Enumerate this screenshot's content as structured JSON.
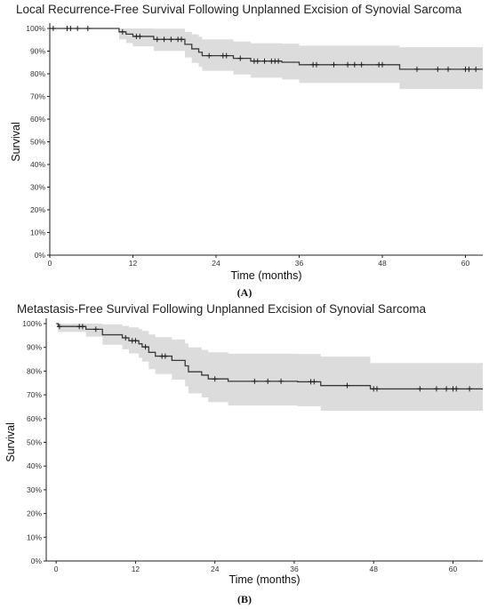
{
  "chart_data": [
    {
      "id": "A",
      "type": "line",
      "subtype": "kaplan-meier",
      "panel_label": "(A)",
      "title": "Local Recurrence-Free Survival Following Unplanned Excision of Synovial Sarcoma",
      "xlabel": "Time (months)",
      "ylabel": "Survival",
      "xlim": [
        0,
        62.5
      ],
      "ylim": [
        0,
        100
      ],
      "x_ticks": [
        0,
        12,
        24,
        36,
        48,
        60
      ],
      "y_ticks": [
        0,
        10,
        20,
        30,
        40,
        50,
        60,
        70,
        80,
        90,
        100
      ],
      "y_tick_labels": [
        "0%",
        "10%",
        "20%",
        "30%",
        "40%",
        "50%",
        "60%",
        "70%",
        "80%",
        "90%",
        "100%"
      ],
      "grid": false,
      "legend": "none",
      "colors": {
        "line": "#3a3a3a",
        "ci": "#dcdcdc"
      },
      "series": [
        {
          "steps": [
            [
              0,
              100
            ],
            [
              10,
              98.5
            ],
            [
              11,
              97.5
            ],
            [
              12,
              96.5
            ],
            [
              15,
              95.2
            ],
            [
              19.5,
              93
            ],
            [
              20.5,
              91
            ],
            [
              21.5,
              89.5
            ],
            [
              22,
              88
            ],
            [
              26.5,
              86.8
            ],
            [
              29,
              85.6
            ],
            [
              33.5,
              85.1
            ],
            [
              36,
              84
            ],
            [
              50.5,
              82
            ],
            [
              62.5,
              82
            ]
          ],
          "ci_lower": [
            [
              0,
              100
            ],
            [
              10,
              95.2
            ],
            [
              11,
              93.6
            ],
            [
              12,
              92.1
            ],
            [
              15,
              90.1
            ],
            [
              19.5,
              87.2
            ],
            [
              20.5,
              84.8
            ],
            [
              21.5,
              83.1
            ],
            [
              22,
              81.3
            ],
            [
              26.5,
              79.7
            ],
            [
              29,
              78.3
            ],
            [
              33.5,
              77.5
            ],
            [
              36,
              76
            ],
            [
              50.5,
              73.3
            ],
            [
              62.5,
              73.3
            ]
          ],
          "ci_upper": [
            [
              0,
              100
            ],
            [
              10,
              100
            ],
            [
              11,
              100
            ],
            [
              12,
              100
            ],
            [
              15,
              99.9
            ],
            [
              19.5,
              98.5
            ],
            [
              20.5,
              97.4
            ],
            [
              21.5,
              96.3
            ],
            [
              22,
              95.2
            ],
            [
              26.5,
              94.2
            ],
            [
              29,
              93.5
            ],
            [
              33.5,
              93.3
            ],
            [
              36,
              92.4
            ],
            [
              50.5,
              91.7
            ],
            [
              62.5,
              91.7
            ]
          ],
          "censored": [
            [
              0.5,
              100
            ],
            [
              2.5,
              100
            ],
            [
              3,
              100
            ],
            [
              4,
              100
            ],
            [
              5.5,
              100
            ],
            [
              10.5,
              98.5
            ],
            [
              12.5,
              96.5
            ],
            [
              13,
              96.5
            ],
            [
              15.5,
              95.2
            ],
            [
              16.5,
              95.2
            ],
            [
              17.5,
              95.2
            ],
            [
              18.5,
              95.2
            ],
            [
              19,
              95.2
            ],
            [
              23,
              88
            ],
            [
              25,
              88
            ],
            [
              25.5,
              88
            ],
            [
              27.5,
              86.8
            ],
            [
              29.5,
              85.6
            ],
            [
              30,
              85.6
            ],
            [
              31,
              85.6
            ],
            [
              32,
              85.6
            ],
            [
              32.5,
              85.6
            ],
            [
              33,
              85.6
            ],
            [
              38,
              84
            ],
            [
              38.5,
              84
            ],
            [
              41,
              84
            ],
            [
              43,
              84
            ],
            [
              44,
              84
            ],
            [
              45,
              84
            ],
            [
              47.5,
              84
            ],
            [
              48,
              84
            ],
            [
              53,
              82
            ],
            [
              56,
              82
            ],
            [
              57.5,
              82
            ],
            [
              60,
              82
            ],
            [
              60.5,
              82
            ],
            [
              61.5,
              82
            ]
          ]
        }
      ]
    },
    {
      "id": "B",
      "type": "line",
      "subtype": "kaplan-meier",
      "panel_label": "(B)",
      "title": "Metastasis-Free Survival Following Unplanned Excision of Synovial Sarcoma",
      "xlabel": "Time (months)",
      "ylabel": "Survival",
      "xlim": [
        -1.5,
        64.5
      ],
      "ylim": [
        0,
        100
      ],
      "x_ticks": [
        0,
        12,
        24,
        36,
        48,
        60
      ],
      "y_ticks": [
        0,
        10,
        20,
        30,
        40,
        50,
        60,
        70,
        80,
        90,
        100
      ],
      "y_tick_labels": [
        "0%",
        "10%",
        "20%",
        "30%",
        "40%",
        "50%",
        "60%",
        "70%",
        "80%",
        "90%",
        "100%"
      ],
      "grid": false,
      "legend": "none",
      "colors": {
        "line": "#3a3a3a",
        "ci": "#dcdcdc"
      },
      "series": [
        {
          "steps": [
            [
              0,
              100
            ],
            [
              0.3,
              98.8
            ],
            [
              4.5,
              97.6
            ],
            [
              7,
              95.3
            ],
            [
              10,
              94
            ],
            [
              11,
              92.8
            ],
            [
              12.5,
              91.5
            ],
            [
              13,
              90.2
            ],
            [
              14,
              87.9
            ],
            [
              15,
              86.3
            ],
            [
              17.5,
              84.5
            ],
            [
              19.5,
              82.2
            ],
            [
              20,
              79.7
            ],
            [
              22,
              78.3
            ],
            [
              23,
              76.7
            ],
            [
              26,
              75.7
            ],
            [
              33,
              75.7
            ],
            [
              36.5,
              75.5
            ],
            [
              40,
              73.9
            ],
            [
              47.5,
              72.5
            ],
            [
              64.5,
              72.5
            ]
          ],
          "ci_lower": [
            [
              0,
              100
            ],
            [
              0.3,
              96.5
            ],
            [
              4.5,
              94.5
            ],
            [
              7,
              91.1
            ],
            [
              10,
              89.2
            ],
            [
              11,
              87.4
            ],
            [
              12.5,
              85.6
            ],
            [
              13,
              84
            ],
            [
              14,
              80.8
            ],
            [
              15,
              78.8
            ],
            [
              17.5,
              76.4
            ],
            [
              19.5,
              73.6
            ],
            [
              20,
              70.6
            ],
            [
              22,
              68.9
            ],
            [
              23,
              66.9
            ],
            [
              26,
              65.5
            ],
            [
              33,
              65.5
            ],
            [
              36.5,
              65.2
            ],
            [
              40,
              63.3
            ],
            [
              47.5,
              63.3
            ],
            [
              64.5,
              63.3
            ]
          ],
          "ci_upper": [
            [
              0,
              100
            ],
            [
              0.3,
              100
            ],
            [
              4.5,
              100
            ],
            [
              7,
              99.7
            ],
            [
              10,
              99
            ],
            [
              11,
              98.4
            ],
            [
              12.5,
              97.7
            ],
            [
              13,
              96.9
            ],
            [
              14,
              95.4
            ],
            [
              15,
              94.3
            ],
            [
              17.5,
              93.3
            ],
            [
              19.5,
              91.6
            ],
            [
              20,
              90
            ],
            [
              22,
              88.9
            ],
            [
              23,
              87.9
            ],
            [
              26,
              87.3
            ],
            [
              33,
              87.3
            ],
            [
              36.5,
              87.2
            ],
            [
              40,
              86.1
            ],
            [
              47.5,
              83.4
            ],
            [
              64.5,
              83.4
            ]
          ],
          "censored": [
            [
              0.5,
              98.8
            ],
            [
              3.5,
              98.8
            ],
            [
              4,
              98.8
            ],
            [
              6,
              97.6
            ],
            [
              10.5,
              94
            ],
            [
              11.5,
              92.8
            ],
            [
              12,
              92.8
            ],
            [
              13.5,
              90.2
            ],
            [
              16,
              86.3
            ],
            [
              16.5,
              86.3
            ],
            [
              24,
              76.7
            ],
            [
              30,
              75.7
            ],
            [
              32,
              75.7
            ],
            [
              34,
              75.7
            ],
            [
              38.5,
              75.5
            ],
            [
              39,
              75.5
            ],
            [
              44,
              73.9
            ],
            [
              48,
              72.5
            ],
            [
              48.5,
              72.5
            ],
            [
              55,
              72.5
            ],
            [
              57.5,
              72.5
            ],
            [
              59,
              72.5
            ],
            [
              60,
              72.5
            ],
            [
              60.5,
              72.5
            ],
            [
              62.5,
              72.5
            ]
          ]
        }
      ]
    }
  ]
}
